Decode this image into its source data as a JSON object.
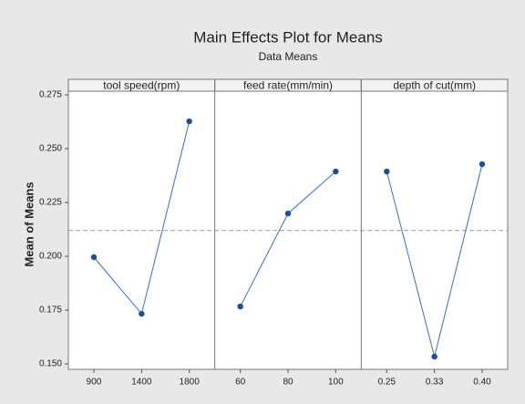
{
  "chart_data": {
    "type": "line",
    "title": "Main Effects Plot for Means",
    "subtitle": "Data Means",
    "ylabel": "Mean of Means",
    "color": "#3b6fb6",
    "marker_color": "#1f4e96",
    "ylim": [
      0.1475,
      0.2767
    ],
    "yticks": [
      {
        "value": 0.15,
        "label": "0.150"
      },
      {
        "value": 0.175,
        "label": "0.175"
      },
      {
        "value": 0.2,
        "label": "0.200"
      },
      {
        "value": 0.225,
        "label": "0.225"
      },
      {
        "value": 0.25,
        "label": "0.250"
      },
      {
        "value": 0.275,
        "label": "0.275"
      }
    ],
    "reference_line": 0.212,
    "panels": [
      {
        "title": "tool speed(rpm)",
        "categories": [
          "900",
          "1400",
          "1800"
        ],
        "values": [
          0.1996,
          0.1733,
          0.2627
        ]
      },
      {
        "title": "feed rate(mm/min)",
        "categories": [
          "60",
          "80",
          "100"
        ],
        "values": [
          0.1767,
          0.2199,
          0.2394
        ]
      },
      {
        "title": "depth of cut(mm)",
        "categories": [
          "0.25",
          "0.33",
          "0.40"
        ],
        "values": [
          0.2394,
          0.1534,
          0.2428
        ]
      }
    ]
  }
}
